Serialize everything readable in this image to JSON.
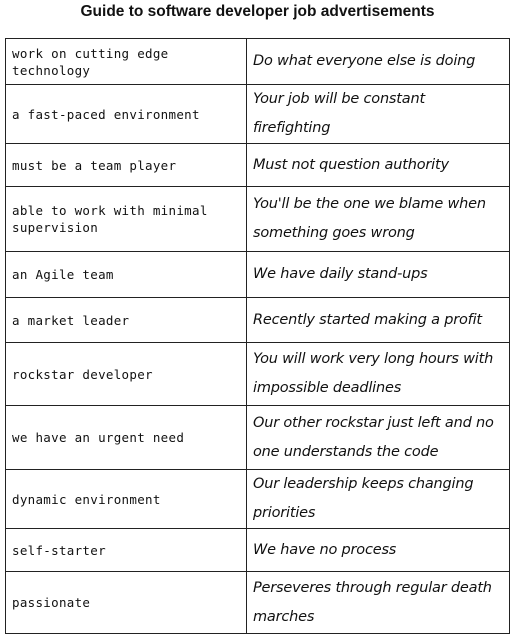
{
  "title": "Guide to software developer job advertisements",
  "rows": [
    {
      "phrase": "work on cutting edge technology",
      "meaning": "Do what everyone else is doing"
    },
    {
      "phrase": "a fast-paced environment",
      "meaning": "Your job will be constant firefighting"
    },
    {
      "phrase": "must be a team player",
      "meaning": "Must not question authority"
    },
    {
      "phrase": "able to work with minimal supervision",
      "meaning": "You'll be the one we blame when something goes wrong"
    },
    {
      "phrase": "an Agile team",
      "meaning": "We have daily stand-ups"
    },
    {
      "phrase": "a market leader",
      "meaning": "Recently started making a profit"
    },
    {
      "phrase": "rockstar developer",
      "meaning": "You will work very long hours with impossible deadlines"
    },
    {
      "phrase": "we have an urgent need",
      "meaning": "Our other rockstar just left and no one understands the code"
    },
    {
      "phrase": "dynamic environment",
      "meaning": "Our leadership keeps changing priorities"
    },
    {
      "phrase": "self-starter",
      "meaning": "We have no process"
    },
    {
      "phrase": "passionate",
      "meaning": "Perseveres through regular death marches"
    }
  ]
}
